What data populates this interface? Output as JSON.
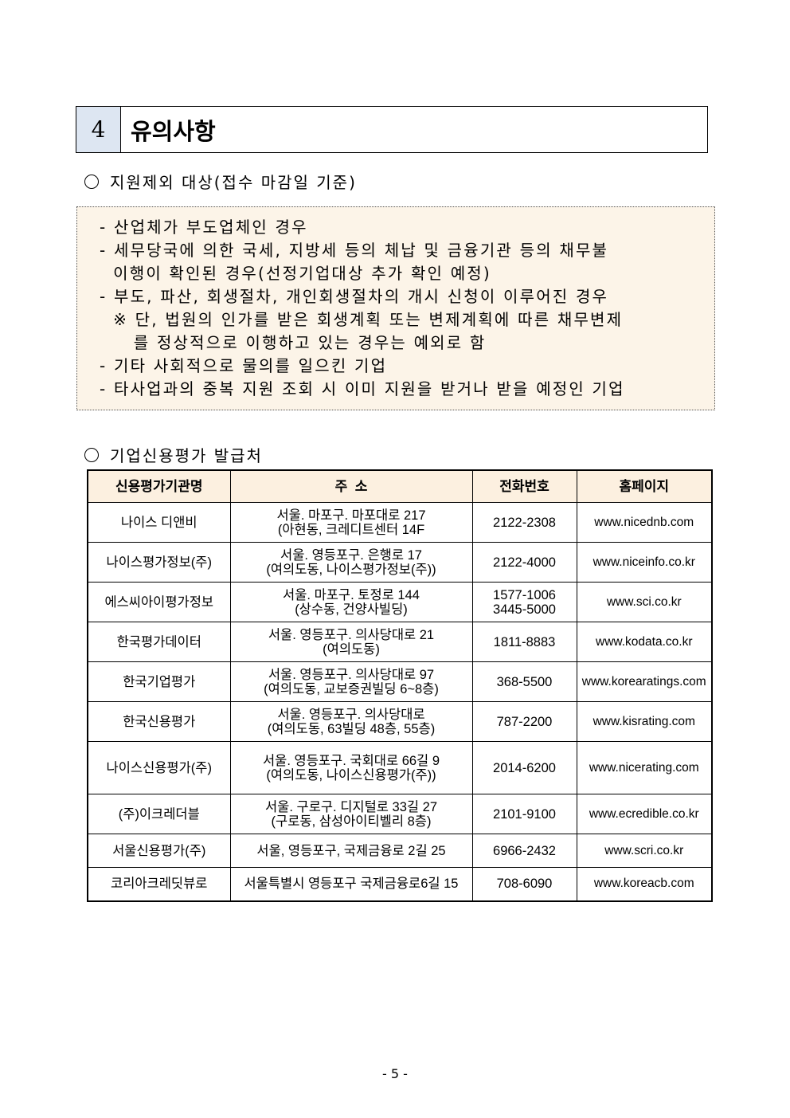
{
  "section": {
    "number": "4",
    "title": "유의사항"
  },
  "exclusion": {
    "heading": "지원제외 대상(접수 마감일 기준)",
    "lines": [
      "- 산업체가 부도업체인 경우",
      "- 세무당국에 의한 국세, 지방세 등의 체납 및 금융기관 등의 채무불",
      "  이행이 확인된 경우(선정기업대상 추가 확인 예정)",
      "- 부도, 파산, 회생절차, 개인회생절차의 개시 신청이 이루어진 경우",
      "  ※ 단, 법원의 인가를 받은 회생계획 또는 변제계획에 따른 채무변제",
      "     를 정상적으로 이행하고 있는 경우는 예외로 함",
      "- 기타 사회적으로 물의를 일으킨 기업",
      "- 타사업과의 중복 지원 조회 시 이미 지원을 받거나 받을 예정인 기업"
    ]
  },
  "agencies": {
    "heading": "기업신용평가 발급처",
    "columns": [
      "신용평가기관명",
      "주  소",
      "전화번호",
      "홈페이지"
    ],
    "rows": [
      {
        "name": "나이스 디앤비",
        "addr1": "서울. 마포구. 마포대로 217",
        "addr2": "(아현동, 크레디트센터 14F",
        "phone1": "2122-2308",
        "phone2": "",
        "url": "www.nicednb.com"
      },
      {
        "name": "나이스평가정보(주)",
        "addr1": "서울. 영등포구. 은행로 17",
        "addr2": "(여의도동, 나이스평가정보(주))",
        "phone1": "2122-4000",
        "phone2": "",
        "url": "www.niceinfo.co.kr"
      },
      {
        "name": "에스씨아이평가정보",
        "addr1": "서울. 마포구. 토정로 144",
        "addr2": "(상수동, 건양사빌딩)",
        "phone1": "1577-1006",
        "phone2": "3445-5000",
        "url": "www.sci.co.kr"
      },
      {
        "name": "한국평가데이터",
        "addr1": "서울. 영등포구. 의사당대로 21",
        "addr2": "(여의도동)",
        "phone1": "1811-8883",
        "phone2": "",
        "url": "www.kodata.co.kr"
      },
      {
        "name": "한국기업평가",
        "addr1": "서울. 영등포구. 의사당대로 97",
        "addr2": "(여의도동, 교보증권빌딩 6~8층)",
        "phone1": "368-5500",
        "phone2": "",
        "url": "www.korearatings.com"
      },
      {
        "name": "한국신용평가",
        "addr1": "서울. 영등포구. 의사당대로",
        "addr2": "(여의도동, 63빌딩 48층, 55층)",
        "phone1": "787-2200",
        "phone2": "",
        "url": "www.kisrating.com"
      },
      {
        "name": "나이스신용평가(주)",
        "addr1": "서울. 영등포구. 국회대로 66길 9",
        "addr2": "(여의도동, 나이스신용평가(주))",
        "phone1": "2014-6200",
        "phone2": "",
        "url": "www.nicerating.com"
      },
      {
        "name": "(주)이크레더블",
        "addr1": "서울. 구로구. 디지털로 33길 27",
        "addr2": "(구로동, 삼성아이티벨리 8층)",
        "phone1": "2101-9100",
        "phone2": "",
        "url": "www.ecredible.co.kr"
      },
      {
        "name": "서울신용평가(주)",
        "addr1": "서울, 영등포구, 국제금융로 2길 25",
        "addr2": "",
        "phone1": "6966-2432",
        "phone2": "",
        "url": "www.scri.co.kr"
      },
      {
        "name": "코리아크레딧뷰로",
        "addr1": "서울특별시 영등포구 국제금융로6길 15",
        "addr2": "",
        "phone1": "708-6090",
        "phone2": "",
        "url": "www.koreacb.com"
      }
    ]
  },
  "footer": {
    "page": "- 5 -"
  }
}
